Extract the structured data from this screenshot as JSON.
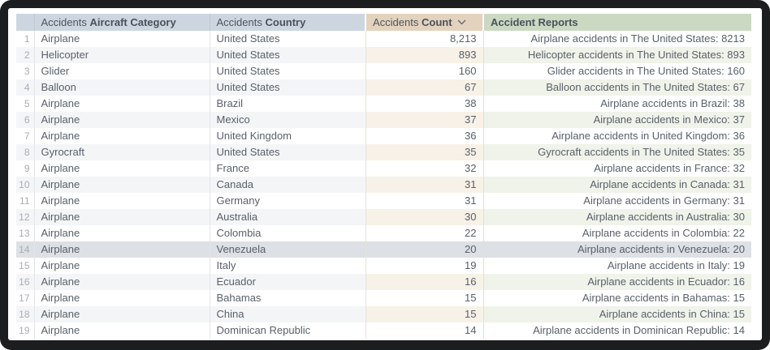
{
  "table": {
    "columns": [
      {
        "id": "row_number",
        "prefix": "",
        "label": ""
      },
      {
        "id": "aircraft_category",
        "prefix": "Accidents",
        "label": "Aircraft Category"
      },
      {
        "id": "country",
        "prefix": "Accidents",
        "label": "Country"
      },
      {
        "id": "count",
        "prefix": "Accidents",
        "label": "Count",
        "sort": "desc"
      },
      {
        "id": "accident_reports",
        "prefix": "",
        "label": "Accident Reports"
      }
    ],
    "rows": [
      {
        "num": "1",
        "category": "Airplane",
        "country": "United States",
        "count": "8,213",
        "report": "Airplane accidents in The United States: 8213",
        "selected": false
      },
      {
        "num": "2",
        "category": "Helicopter",
        "country": "United States",
        "count": "893",
        "report": "Helicopter accidents in The United States: 893",
        "selected": false
      },
      {
        "num": "3",
        "category": "Glider",
        "country": "United States",
        "count": "160",
        "report": "Glider accidents in The United States: 160",
        "selected": false
      },
      {
        "num": "4",
        "category": "Balloon",
        "country": "United States",
        "count": "67",
        "report": "Balloon accidents in The United States: 67",
        "selected": false
      },
      {
        "num": "5",
        "category": "Airplane",
        "country": "Brazil",
        "count": "38",
        "report": "Airplane accidents in Brazil: 38",
        "selected": false
      },
      {
        "num": "6",
        "category": "Airplane",
        "country": "Mexico",
        "count": "37",
        "report": "Airplane accidents in Mexico: 37",
        "selected": false
      },
      {
        "num": "7",
        "category": "Airplane",
        "country": "United Kingdom",
        "count": "36",
        "report": "Airplane accidents in United Kingdom: 36",
        "selected": false
      },
      {
        "num": "8",
        "category": "Gyrocraft",
        "country": "United States",
        "count": "35",
        "report": "Gyrocraft accidents in The United States: 35",
        "selected": false
      },
      {
        "num": "9",
        "category": "Airplane",
        "country": "France",
        "count": "32",
        "report": "Airplane accidents in France: 32",
        "selected": false
      },
      {
        "num": "10",
        "category": "Airplane",
        "country": "Canada",
        "count": "31",
        "report": "Airplane accidents in Canada: 31",
        "selected": false
      },
      {
        "num": "11",
        "category": "Airplane",
        "country": "Germany",
        "count": "31",
        "report": "Airplane accidents in Germany: 31",
        "selected": false
      },
      {
        "num": "12",
        "category": "Airplane",
        "country": "Australia",
        "count": "30",
        "report": "Airplane accidents in Australia: 30",
        "selected": false
      },
      {
        "num": "13",
        "category": "Airplane",
        "country": "Colombia",
        "count": "22",
        "report": "Airplane accidents in Colombia: 22",
        "selected": false
      },
      {
        "num": "14",
        "category": "Airplane",
        "country": "Venezuela",
        "count": "20",
        "report": "Airplane accidents in Venezuela: 20",
        "selected": true
      },
      {
        "num": "15",
        "category": "Airplane",
        "country": "Italy",
        "count": "19",
        "report": "Airplane accidents in Italy: 19",
        "selected": false
      },
      {
        "num": "16",
        "category": "Airplane",
        "country": "Ecuador",
        "count": "16",
        "report": "Airplane accidents in Ecuador: 16",
        "selected": false
      },
      {
        "num": "17",
        "category": "Airplane",
        "country": "Bahamas",
        "count": "15",
        "report": "Airplane accidents in Bahamas: 15",
        "selected": false
      },
      {
        "num": "18",
        "category": "Airplane",
        "country": "China",
        "count": "15",
        "report": "Airplane accidents in China: 15",
        "selected": false
      },
      {
        "num": "19",
        "category": "Airplane",
        "country": "Dominican Republic",
        "count": "14",
        "report": "Airplane accidents in Dominican Republic: 14",
        "selected": false
      }
    ]
  },
  "colors": {
    "frame": "#1b1d1f",
    "header_blue": "#cdd6e0",
    "header_tan": "#e3d2bd",
    "header_green": "#cbd9c2",
    "stripe_gray": "#f3f5f7",
    "stripe_tan": "#f7f1e7",
    "stripe_green": "#eff3e9",
    "selected_row": "#dde0e4",
    "cell_text": "#59616b",
    "row_number_text": "#a7aeb8"
  }
}
